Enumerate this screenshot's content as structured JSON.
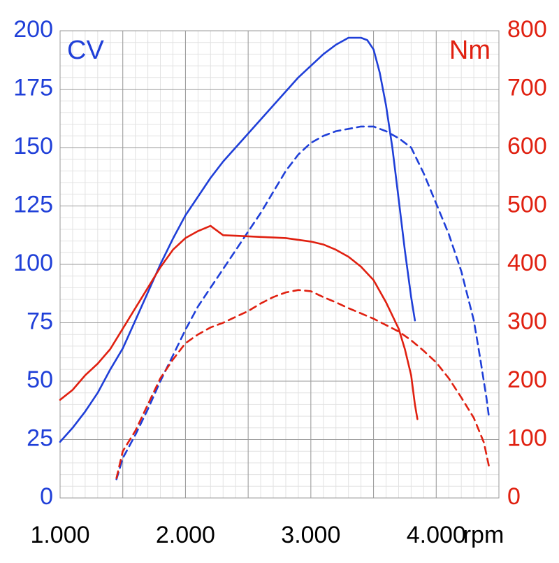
{
  "chart_data": {
    "type": "line",
    "x_axis": {
      "min": 1000,
      "max": 4500,
      "ticks": [
        1000,
        2000,
        3000,
        4000
      ],
      "tick_labels": [
        "1.000",
        "2.000",
        "3.000",
        "4.000"
      ],
      "unit_label": "rpm"
    },
    "y_left": {
      "min": 0,
      "max": 200,
      "ticks": [
        0,
        25,
        50,
        75,
        100,
        125,
        150,
        175,
        200
      ],
      "tick_labels": [
        "0",
        "25",
        "50",
        "75",
        "100",
        "125",
        "150",
        "175",
        "200"
      ],
      "unit_label": "CV",
      "color": "#1f3fd8"
    },
    "y_right": {
      "min": 0,
      "max": 800,
      "ticks": [
        0,
        100,
        200,
        300,
        400,
        500,
        600,
        700,
        800
      ],
      "tick_labels": [
        "0",
        "100",
        "200",
        "300",
        "400",
        "500",
        "600",
        "700",
        "800"
      ],
      "unit_label": "Nm",
      "color": "#e02010"
    },
    "grid": true,
    "series": [
      {
        "axis": "left",
        "style": "solid",
        "color": "#1f3fd8",
        "points": [
          [
            1000,
            24
          ],
          [
            1100,
            30
          ],
          [
            1200,
            37
          ],
          [
            1300,
            45
          ],
          [
            1400,
            55
          ],
          [
            1500,
            64
          ],
          [
            1600,
            76
          ],
          [
            1700,
            88
          ],
          [
            1800,
            100
          ],
          [
            1900,
            111
          ],
          [
            2000,
            121
          ],
          [
            2100,
            129
          ],
          [
            2200,
            137
          ],
          [
            2300,
            144
          ],
          [
            2400,
            150
          ],
          [
            2500,
            156
          ],
          [
            2600,
            162
          ],
          [
            2700,
            168
          ],
          [
            2800,
            174
          ],
          [
            2900,
            180
          ],
          [
            3000,
            185
          ],
          [
            3100,
            190
          ],
          [
            3200,
            194
          ],
          [
            3300,
            197
          ],
          [
            3400,
            197
          ],
          [
            3450,
            196
          ],
          [
            3500,
            192
          ],
          [
            3550,
            182
          ],
          [
            3600,
            168
          ],
          [
            3650,
            150
          ],
          [
            3700,
            128
          ],
          [
            3750,
            106
          ],
          [
            3800,
            86
          ],
          [
            3830,
            76
          ]
        ]
      },
      {
        "axis": "left",
        "style": "dashed",
        "color": "#1f3fd8",
        "points": [
          [
            1450,
            8
          ],
          [
            1500,
            17
          ],
          [
            1600,
            27
          ],
          [
            1700,
            38
          ],
          [
            1800,
            50
          ],
          [
            1900,
            61
          ],
          [
            2000,
            72
          ],
          [
            2100,
            82
          ],
          [
            2200,
            90
          ],
          [
            2300,
            98
          ],
          [
            2400,
            106
          ],
          [
            2500,
            114
          ],
          [
            2600,
            122
          ],
          [
            2700,
            131
          ],
          [
            2800,
            140
          ],
          [
            2900,
            147
          ],
          [
            3000,
            152
          ],
          [
            3100,
            155
          ],
          [
            3200,
            157
          ],
          [
            3300,
            158
          ],
          [
            3400,
            159
          ],
          [
            3500,
            159
          ],
          [
            3600,
            157
          ],
          [
            3700,
            154
          ],
          [
            3800,
            150
          ],
          [
            3900,
            139
          ],
          [
            4000,
            126
          ],
          [
            4100,
            113
          ],
          [
            4200,
            97
          ],
          [
            4300,
            76
          ],
          [
            4350,
            60
          ],
          [
            4400,
            43
          ],
          [
            4420,
            35
          ]
        ]
      },
      {
        "axis": "right",
        "style": "solid",
        "color": "#e02010",
        "points": [
          [
            1000,
            168
          ],
          [
            1100,
            185
          ],
          [
            1200,
            210
          ],
          [
            1300,
            230
          ],
          [
            1400,
            255
          ],
          [
            1500,
            290
          ],
          [
            1600,
            325
          ],
          [
            1700,
            360
          ],
          [
            1800,
            395
          ],
          [
            1900,
            425
          ],
          [
            2000,
            445
          ],
          [
            2100,
            457
          ],
          [
            2200,
            466
          ],
          [
            2300,
            450
          ],
          [
            2400,
            449
          ],
          [
            2500,
            448
          ],
          [
            2600,
            447
          ],
          [
            2700,
            446
          ],
          [
            2800,
            445
          ],
          [
            2900,
            442
          ],
          [
            3000,
            439
          ],
          [
            3100,
            434
          ],
          [
            3200,
            425
          ],
          [
            3300,
            413
          ],
          [
            3400,
            396
          ],
          [
            3500,
            373
          ],
          [
            3600,
            335
          ],
          [
            3700,
            290
          ],
          [
            3750,
            255
          ],
          [
            3800,
            210
          ],
          [
            3830,
            160
          ],
          [
            3850,
            135
          ]
        ]
      },
      {
        "axis": "right",
        "style": "dashed",
        "color": "#e02010",
        "points": [
          [
            1450,
            34
          ],
          [
            1500,
            80
          ],
          [
            1600,
            115
          ],
          [
            1700,
            160
          ],
          [
            1800,
            205
          ],
          [
            1900,
            237
          ],
          [
            2000,
            265
          ],
          [
            2100,
            280
          ],
          [
            2200,
            292
          ],
          [
            2300,
            300
          ],
          [
            2400,
            310
          ],
          [
            2500,
            320
          ],
          [
            2600,
            333
          ],
          [
            2700,
            344
          ],
          [
            2800,
            352
          ],
          [
            2900,
            356
          ],
          [
            3000,
            354
          ],
          [
            3100,
            344
          ],
          [
            3200,
            335
          ],
          [
            3300,
            325
          ],
          [
            3400,
            316
          ],
          [
            3500,
            307
          ],
          [
            3600,
            296
          ],
          [
            3700,
            285
          ],
          [
            3800,
            270
          ],
          [
            3900,
            252
          ],
          [
            4000,
            232
          ],
          [
            4100,
            205
          ],
          [
            4200,
            172
          ],
          [
            4300,
            137
          ],
          [
            4380,
            95
          ],
          [
            4420,
            55
          ]
        ]
      }
    ]
  }
}
